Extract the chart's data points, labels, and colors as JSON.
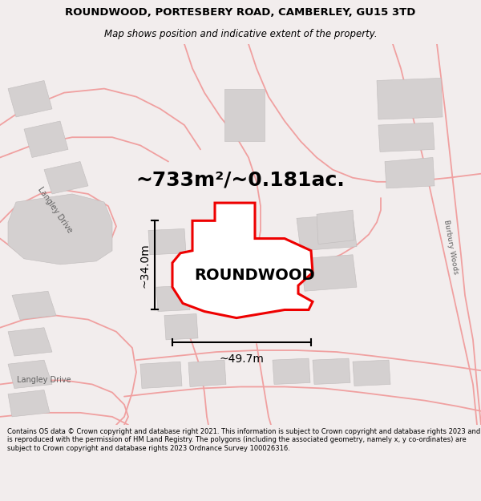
{
  "title": "ROUNDWOOD, PORTESBERY ROAD, CAMBERLEY, GU15 3TD",
  "subtitle": "Map shows position and indicative extent of the property.",
  "property_name": "ROUNDWOOD",
  "area_text": "~733m²/~0.181ac.",
  "dim_width": "~49.7m",
  "dim_height": "~34.0m",
  "footer": "Contains OS data © Crown copyright and database right 2021. This information is subject to Crown copyright and database rights 2023 and is reproduced with the permission of HM Land Registry. The polygons (including the associated geometry, namely x, y co-ordinates) are subject to Crown copyright and database rights 2023 Ordnance Survey 100026316.",
  "bg_color": "#f2eded",
  "map_bg": "#ffffff",
  "road_color": "#f0a0a0",
  "building_color": "#d4d0d0",
  "property_outline_color": "#ee0000",
  "dim_line_color": "#000000",
  "title_color": "#000000",
  "footer_color": "#000000",
  "title_fontsize": 9.5,
  "subtitle_fontsize": 8.5,
  "area_fontsize": 18,
  "propname_fontsize": 14,
  "dim_fontsize": 10,
  "footer_fontsize": 6.0,
  "street_fontsize": 7.0
}
